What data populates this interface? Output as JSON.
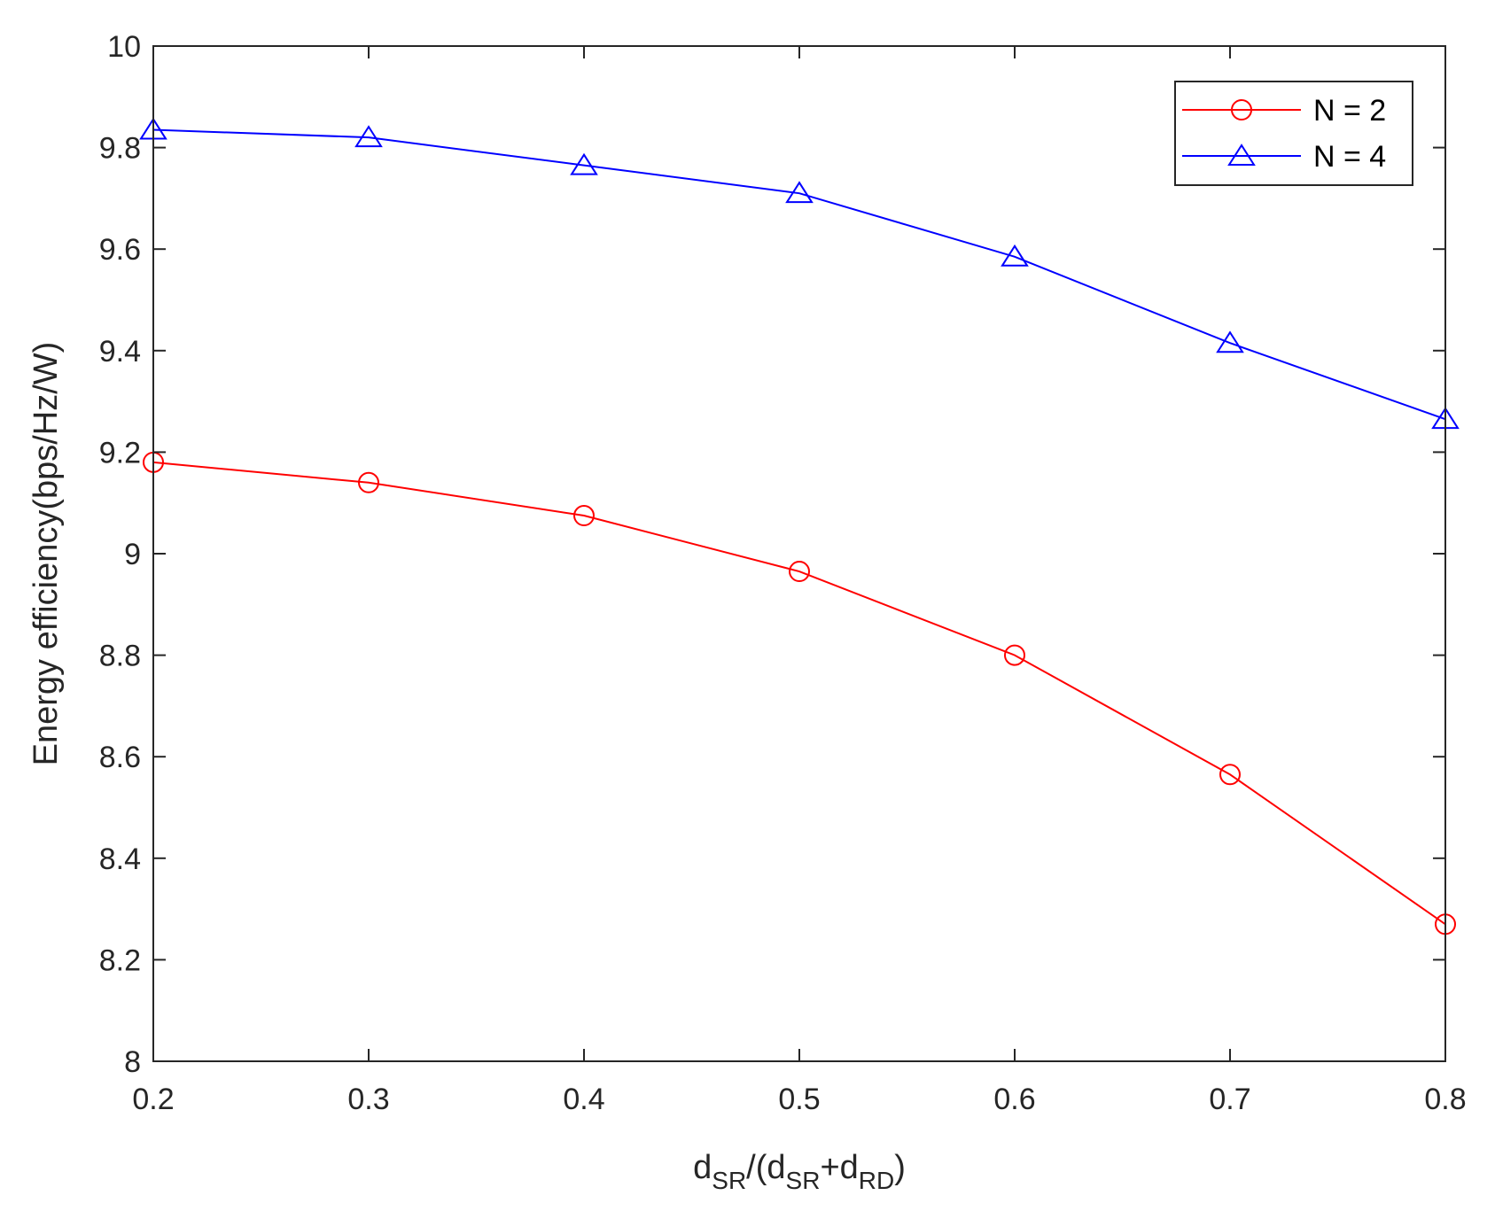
{
  "chart_data": {
    "type": "line",
    "title": "",
    "x": [
      0.2,
      0.3,
      0.4,
      0.5,
      0.6,
      0.7,
      0.8
    ],
    "xlim": [
      0.2,
      0.8
    ],
    "ylim": [
      8,
      10
    ],
    "x_ticks": [
      "0.2",
      "0.3",
      "0.4",
      "0.5",
      "0.6",
      "0.7",
      "0.8"
    ],
    "y_ticks": [
      "8",
      "8.2",
      "8.4",
      "8.6",
      "8.8",
      "9",
      "9.2",
      "9.4",
      "9.6",
      "9.8",
      "10"
    ],
    "xlabel": {
      "parts": [
        {
          "text": "d",
          "sub": false
        },
        {
          "text": "SR",
          "sub": true
        },
        {
          "text": "/(d",
          "sub": false
        },
        {
          "text": "SR",
          "sub": true
        },
        {
          "text": "+d",
          "sub": false
        },
        {
          "text": "RD",
          "sub": true
        },
        {
          "text": ")",
          "sub": false
        }
      ]
    },
    "ylabel": "Energy efficiency(bps/Hz/W)",
    "grid": false,
    "legend_position": "top-right",
    "series": [
      {
        "name": "N = 2",
        "color": "#ff0000",
        "marker": "circle",
        "values": [
          9.18,
          9.14,
          9.075,
          8.965,
          8.8,
          8.565,
          8.27
        ]
      },
      {
        "name": "N = 4",
        "color": "#0000ff",
        "marker": "triangle",
        "values": [
          9.835,
          9.82,
          9.765,
          9.71,
          9.585,
          9.415,
          9.265
        ]
      }
    ]
  }
}
